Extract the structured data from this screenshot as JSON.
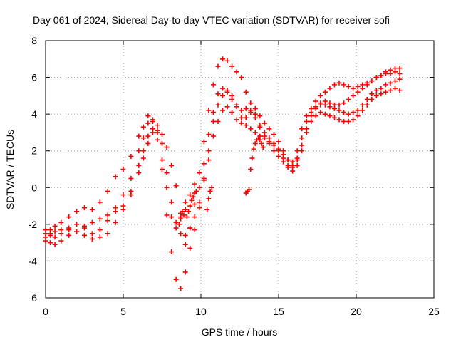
{
  "chart_data": {
    "type": "scatter",
    "title": "Day 061 of 2024, Sidereal Day-to-day VTEC variation (SDTVAR) for receiver sofi",
    "xlabel": "GPS time / hours",
    "ylabel": "SDTVAR / TECUs",
    "xlim": [
      0,
      25
    ],
    "ylim": [
      -6,
      8
    ],
    "xticks": [
      0,
      5,
      10,
      15,
      20,
      25
    ],
    "yticks": [
      -6,
      -4,
      -2,
      0,
      2,
      4,
      6,
      8
    ],
    "grid": true,
    "legend": "none",
    "marker": "+",
    "color": "#ff0000",
    "series": [
      {
        "x": [
          0.0,
          0.3,
          0.6,
          1.0,
          1.5,
          2.0,
          2.5,
          3.0,
          3.5,
          4.0,
          4.5,
          5.0,
          5.5,
          6.0,
          6.3,
          6.6,
          6.9,
          7.2,
          7.5,
          7.8,
          8.1,
          8.4,
          8.7,
          9.0,
          9.3,
          9.6,
          9.9,
          10.2,
          10.5,
          10.8,
          11.1,
          11.4,
          11.7,
          12.0,
          12.3,
          12.6,
          12.9,
          13.2,
          13.5,
          13.8,
          14.1,
          14.4,
          14.7,
          15.0,
          15.3,
          15.6,
          15.9,
          16.2,
          16.5,
          16.8,
          17.1,
          17.4,
          17.7,
          18.0,
          18.3,
          18.6,
          18.9,
          19.2,
          19.5,
          19.8,
          20.1,
          20.4,
          20.7,
          21.0,
          21.3,
          21.6,
          21.9,
          22.2,
          22.5,
          22.8
        ],
        "y": [
          -2.5,
          -2.3,
          -2.1,
          -1.9,
          -1.6,
          -1.3,
          -1.1,
          -1.2,
          -0.8,
          -0.2,
          0.6,
          1.0,
          1.7,
          2.8,
          3.3,
          3.9,
          3.6,
          3.0,
          1.5,
          0.0,
          -1.6,
          -2.2,
          -1.6,
          -0.8,
          -0.4,
          0.2,
          0.8,
          2.5,
          4.2,
          5.6,
          6.6,
          7.0,
          6.9,
          6.6,
          6.3,
          6.0,
          5.2,
          4.6,
          4.0,
          3.4,
          3.0,
          2.7,
          2.4,
          2.1,
          1.8,
          1.5,
          1.4,
          2.0,
          3.2,
          3.9,
          4.3,
          4.7,
          5.0,
          5.2,
          5.4,
          5.6,
          5.7,
          5.6,
          5.5,
          5.4,
          5.5,
          5.6,
          5.7,
          5.8,
          6.0,
          6.1,
          6.3,
          6.4,
          6.5,
          6.5
        ]
      },
      {
        "x": [
          0.0,
          0.3,
          0.6,
          1.0,
          1.5,
          2.0,
          2.5,
          3.0,
          3.5,
          4.0,
          4.5,
          5.0,
          5.5,
          6.0,
          6.3,
          6.6,
          6.9,
          7.2,
          7.5,
          7.8,
          8.1,
          8.4,
          8.7,
          9.0,
          9.3,
          9.6,
          9.9,
          10.2,
          10.5,
          10.8,
          11.1,
          11.4,
          11.7,
          12.0,
          12.3,
          12.6,
          12.9,
          13.2,
          13.5,
          13.8,
          14.1,
          14.4,
          14.7,
          15.0,
          15.3,
          15.6,
          15.9,
          16.2,
          16.5,
          16.8,
          17.1,
          17.4,
          17.7,
          18.0,
          18.3,
          18.6,
          18.9,
          19.2,
          19.5,
          19.8,
          20.1,
          20.4,
          20.7,
          21.0,
          21.3,
          21.6,
          21.9,
          22.2,
          22.5,
          22.8
        ],
        "y": [
          -2.7,
          -2.6,
          -2.4,
          -2.3,
          -2.2,
          -2.4,
          -2.6,
          -2.8,
          -2.7,
          -2.5,
          -1.9,
          -1.2,
          -0.4,
          0.8,
          1.6,
          2.4,
          3.0,
          2.6,
          1.0,
          -1.5,
          -3.5,
          -5.0,
          -5.5,
          -4.6,
          -3.3,
          -2.3,
          -1.1,
          0.5,
          2.0,
          3.6,
          4.5,
          5.0,
          5.3,
          5.0,
          4.5,
          3.8,
          3.4,
          3.2,
          3.0,
          2.8,
          2.7,
          2.5,
          2.3,
          2.0,
          1.6,
          1.1,
          0.9,
          1.2,
          2.0,
          3.0,
          3.6,
          3.9,
          4.1,
          4.0,
          3.9,
          3.8,
          3.7,
          3.6,
          3.6,
          3.7,
          3.9,
          4.2,
          4.5,
          4.8,
          5.0,
          5.1,
          5.2,
          5.3,
          5.4,
          5.3
        ]
      },
      {
        "x": [
          0.0,
          0.3,
          0.6,
          1.0,
          1.5,
          2.0,
          2.5,
          3.0,
          3.5,
          4.0,
          4.5,
          5.0,
          5.5,
          6.0,
          6.3,
          6.6,
          6.9,
          7.2,
          7.5,
          7.8,
          8.1,
          8.4,
          8.7,
          9.0,
          9.3,
          9.6,
          9.9,
          10.2,
          10.5,
          10.8,
          11.1,
          11.4,
          11.7,
          12.0,
          12.3,
          12.6,
          12.9,
          13.2,
          13.5,
          13.8,
          14.1,
          14.4,
          14.7,
          15.0,
          15.3,
          15.6,
          15.9,
          16.2,
          16.5,
          16.8,
          17.1,
          17.4,
          17.7,
          18.0,
          18.3,
          18.6,
          18.9,
          19.2,
          19.5,
          19.8,
          20.1,
          20.4,
          20.7,
          21.0,
          21.3,
          21.6,
          21.9,
          22.2,
          22.5,
          22.8
        ],
        "y": [
          -2.9,
          -3.0,
          -3.1,
          -2.9,
          -2.6,
          -2.4,
          -2.1,
          -1.9,
          -1.7,
          -1.5,
          -1.3,
          -1.0,
          -0.2,
          1.2,
          2.0,
          2.8,
          3.2,
          3.1,
          2.4,
          0.8,
          -0.8,
          -1.9,
          -2.5,
          -2.6,
          -2.2,
          -1.6,
          -0.8,
          0.4,
          1.5,
          2.8,
          3.6,
          4.2,
          4.4,
          4.1,
          3.7,
          3.5,
          3.8,
          4.2,
          4.3,
          3.9,
          3.5,
          3.2,
          2.9,
          2.5,
          2.0,
          1.5,
          1.2,
          1.6,
          2.7,
          3.6,
          4.1,
          4.4,
          4.6,
          4.7,
          4.6,
          4.5,
          4.5,
          4.6,
          4.8,
          5.0,
          5.2,
          5.4,
          5.6,
          5.8,
          6.0,
          6.1,
          6.2,
          6.2,
          6.3,
          6.2
        ]
      },
      {
        "x": [
          0.0,
          0.3,
          0.6,
          1.0,
          1.5,
          2.0,
          2.5,
          3.0,
          3.5,
          4.0,
          4.5,
          5.0,
          5.5,
          6.0,
          6.3,
          6.6,
          6.9,
          7.2,
          7.5,
          7.8,
          8.1,
          8.4,
          8.7,
          9.0,
          9.3,
          9.6,
          9.9,
          10.2,
          10.5,
          10.8,
          11.1,
          11.4,
          11.7,
          12.0,
          12.3,
          12.6,
          12.9,
          13.2,
          13.5,
          13.8,
          14.1,
          14.4,
          14.7,
          15.0,
          15.3,
          15.6,
          15.9,
          16.2,
          16.5,
          16.8,
          17.1,
          17.4,
          17.7,
          18.0,
          18.3,
          18.6,
          18.9,
          19.2,
          19.5,
          19.8,
          20.1,
          20.4,
          20.7,
          21.0,
          21.3,
          21.6,
          21.9,
          22.2,
          22.5,
          22.8
        ],
        "y": [
          -2.3,
          -2.5,
          -2.7,
          -2.5,
          -2.3,
          -2.0,
          -2.2,
          -2.5,
          -2.3,
          -1.8,
          -1.1,
          -0.4,
          0.5,
          2.0,
          2.7,
          3.5,
          3.7,
          3.4,
          2.9,
          2.2,
          1.2,
          0.1,
          -1.4,
          -3.1,
          -2.2,
          -0.9,
          0.0,
          1.3,
          2.9,
          4.1,
          5.1,
          5.4,
          5.2,
          4.8,
          4.4,
          4.2,
          4.3,
          4.1,
          3.8,
          3.3,
          2.8,
          2.4,
          2.0,
          1.7,
          1.4,
          1.2,
          1.1,
          1.5,
          2.3,
          3.2,
          3.9,
          4.3,
          4.5,
          4.5,
          4.4,
          4.3,
          4.2,
          4.1,
          4.0,
          4.1,
          4.2,
          4.5,
          4.8,
          5.1,
          5.3,
          5.4,
          5.6,
          5.7,
          5.8,
          5.9
        ]
      },
      {
        "x": [
          8.6,
          8.7,
          8.8,
          8.9,
          9.0,
          9.1,
          9.2,
          9.3,
          9.4,
          9.5,
          9.6,
          9.7,
          10.4,
          10.5,
          10.6,
          10.7,
          12.9,
          13.0,
          13.1,
          13.2,
          13.3,
          13.4,
          13.5,
          13.6,
          13.7,
          13.8,
          13.9,
          14.0
        ],
        "y": [
          -2.0,
          -1.7,
          -1.3,
          -1.5,
          -1.2,
          -1.6,
          -1.3,
          -1.0,
          -0.7,
          -0.5,
          -0.3,
          -0.2,
          -1.2,
          -0.6,
          -0.2,
          0.0,
          -0.3,
          -0.2,
          -0.1,
          1.0,
          1.6,
          2.1,
          2.4,
          2.6,
          2.7,
          2.6,
          2.4,
          2.2
        ]
      }
    ]
  }
}
